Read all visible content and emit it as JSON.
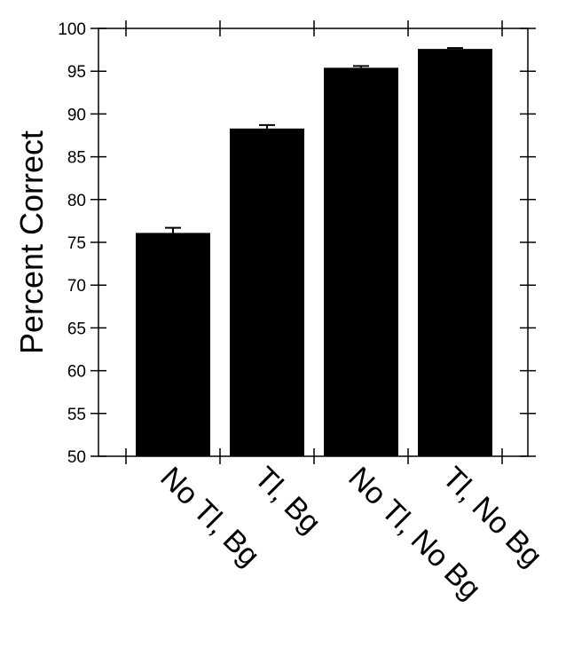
{
  "chart_data": {
    "type": "bar",
    "title": "",
    "xlabel": "",
    "ylabel": "Percent Correct",
    "categories": [
      "No Tl, Bg",
      "Tl, Bg",
      "No Tl, No Bg",
      "Tl, No Bg"
    ],
    "values": [
      76.1,
      88.3,
      95.4,
      97.6
    ],
    "error_bars": [
      0.6,
      0.4,
      0.2,
      0.1
    ],
    "ylim": [
      50,
      100
    ],
    "yticks": [
      "50",
      "55",
      "60",
      "65",
      "70",
      "75",
      "80",
      "85",
      "90",
      "95",
      "100"
    ],
    "grid": false,
    "legend": "none",
    "bar_color": "#000000"
  }
}
